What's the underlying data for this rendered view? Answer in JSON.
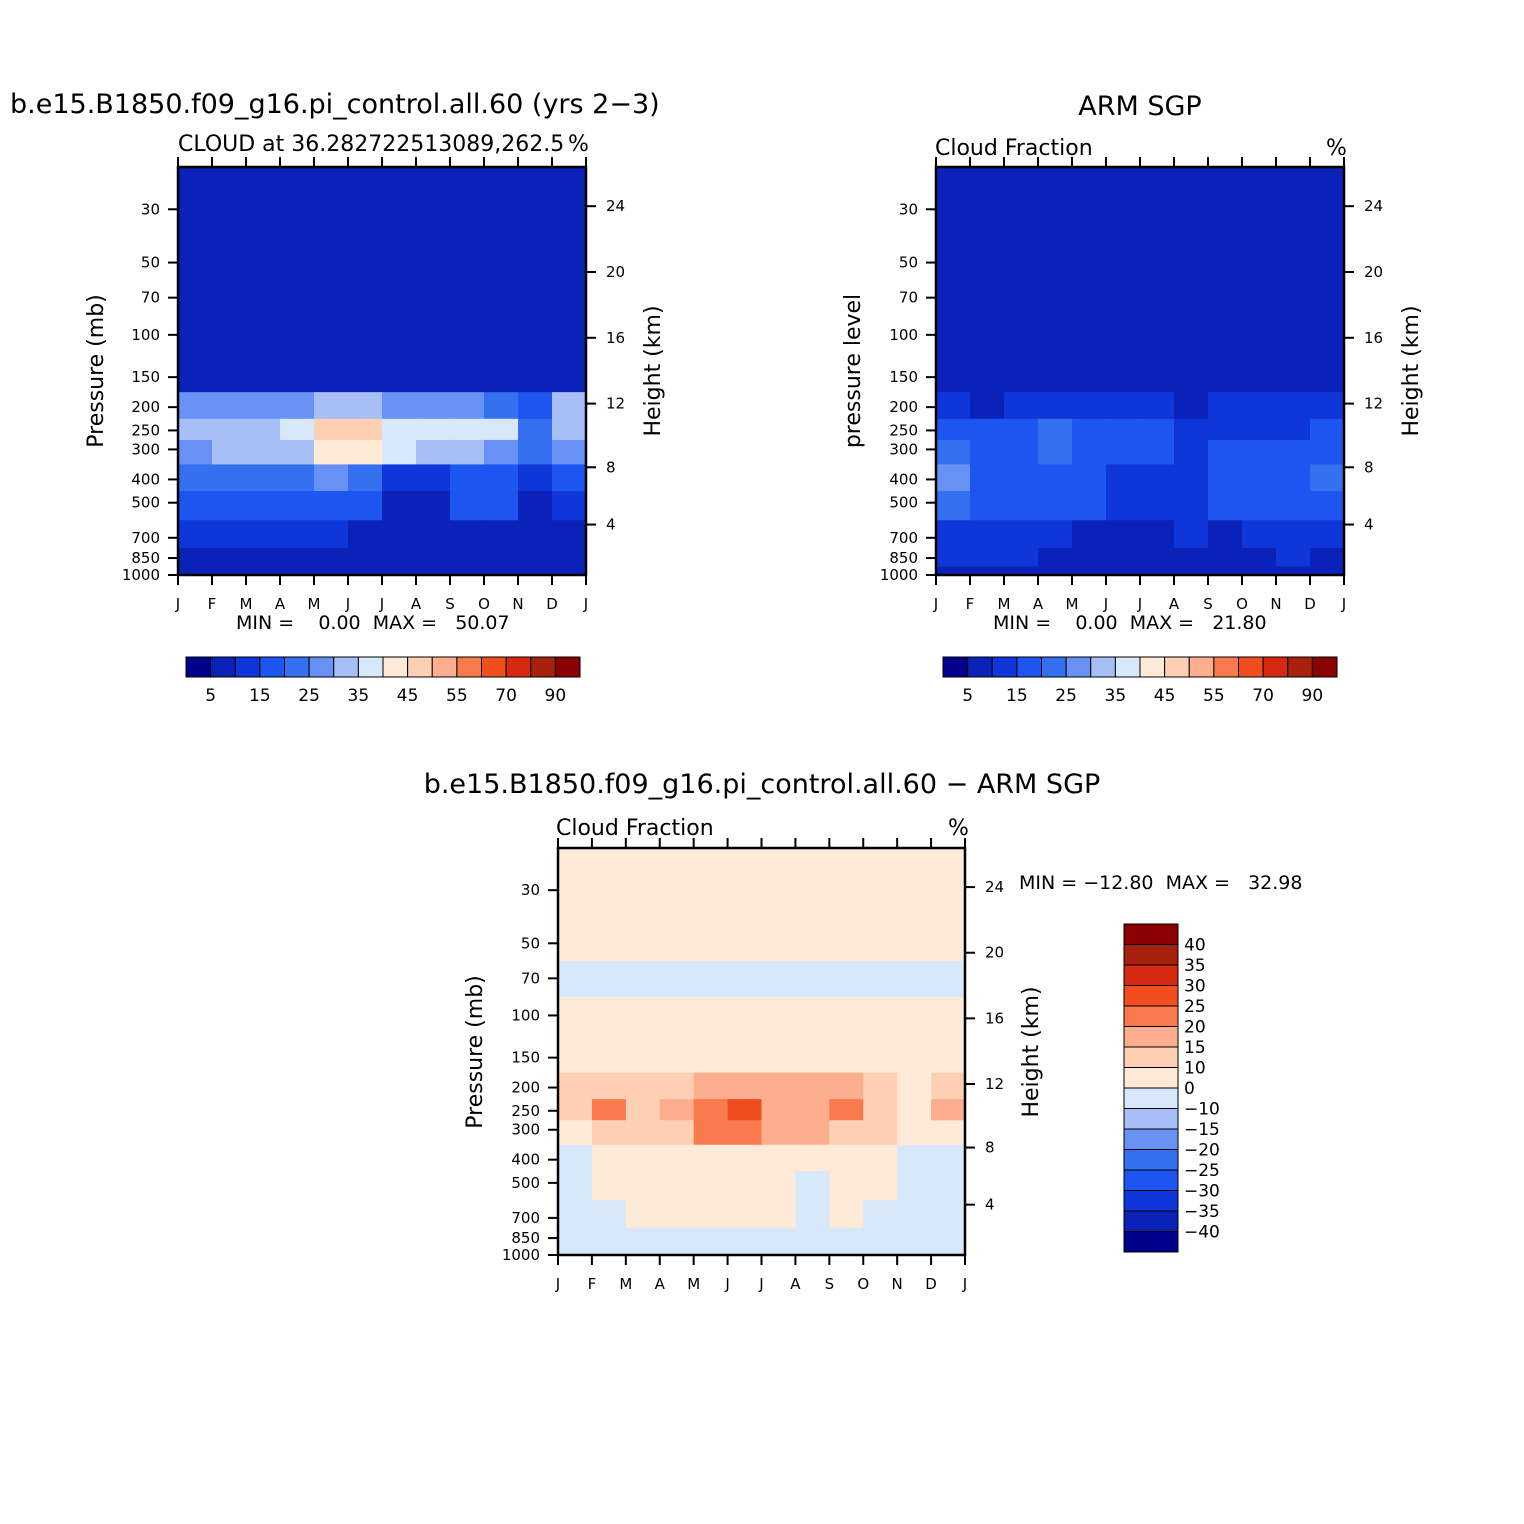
{
  "panels": [
    {
      "title": "b.e15.B1850.f09_g16.pi_control.all.60 (yrs 2−3)",
      "subtitle": "CLOUD at 36.282722513089,262.5",
      "units": "%",
      "ylabel": "Pressure (mb)",
      "ylabel_right": "Height (km)",
      "stats": "MIN =    0.00  MAX =   50.07"
    },
    {
      "title": "ARM SGP",
      "subtitle": "Cloud Fraction",
      "units": "%",
      "ylabel": "pressure level",
      "ylabel_right": "Height (km)",
      "stats": "MIN =    0.00  MAX =   21.80"
    },
    {
      "title": "b.e15.B1850.f09_g16.pi_control.all.60 − ARM SGP",
      "subtitle": "Cloud Fraction",
      "units": "%",
      "ylabel": "Pressure (mb)",
      "ylabel_right": "Height (km)",
      "stats": "MIN = −12.80  MAX =   32.98"
    }
  ],
  "chart_data": [
    {
      "type": "heatmap",
      "title": "b.e15.B1850.f09_g16.pi_control.all.60 (yrs 2−3)",
      "subtitle": "CLOUD at 36.282722513089,262.5",
      "units": "%",
      "x_ticks": [
        "J",
        "F",
        "M",
        "A",
        "M",
        "J",
        "J",
        "A",
        "S",
        "O",
        "N",
        "D",
        "J"
      ],
      "y_ticks": [
        "30",
        "50",
        "70",
        "100",
        "150",
        "200",
        "250",
        "300",
        "400",
        "500",
        "700",
        "850",
        "1000"
      ],
      "y_tick_values": [
        30,
        50,
        70,
        100,
        150,
        200,
        250,
        300,
        400,
        500,
        700,
        850,
        1000
      ],
      "y2_ticks": [
        "24",
        "20",
        "16",
        "12",
        "8",
        "4"
      ],
      "ylim": [
        1000,
        20
      ],
      "log_y": true,
      "min": 0.0,
      "max": 50.07,
      "months": [
        "J",
        "F",
        "M",
        "A",
        "M",
        "J",
        "J",
        "A",
        "S",
        "O",
        "N",
        "D"
      ],
      "levels": [
        30,
        50,
        70,
        100,
        150,
        200,
        250,
        300,
        400,
        500,
        700,
        850,
        1000
      ],
      "values": [
        [
          0,
          0,
          0,
          0,
          0,
          0,
          0,
          0,
          0,
          0,
          0,
          0
        ],
        [
          0,
          0,
          0,
          0,
          0,
          0,
          0,
          0,
          0,
          0,
          0,
          0
        ],
        [
          0,
          0,
          0,
          0,
          0,
          0,
          0,
          0,
          0,
          0,
          0,
          0
        ],
        [
          0,
          0,
          0,
          0,
          0,
          0,
          0,
          0,
          0,
          0,
          0,
          0
        ],
        [
          2,
          2,
          2,
          2,
          2,
          3,
          2,
          2,
          2,
          2,
          2,
          3
        ],
        [
          20,
          20,
          20,
          22,
          25,
          25,
          22,
          20,
          20,
          18,
          12,
          25
        ],
        [
          27,
          28,
          25,
          30,
          40,
          42,
          32,
          30,
          32,
          30,
          15,
          28
        ],
        [
          22,
          27,
          25,
          28,
          36,
          36,
          30,
          28,
          28,
          24,
          15,
          22
        ],
        [
          16,
          16,
          16,
          18,
          20,
          16,
          8,
          8,
          14,
          14,
          8,
          14
        ],
        [
          14,
          14,
          14,
          14,
          14,
          12,
          4,
          4,
          12,
          10,
          4,
          8
        ],
        [
          6,
          6,
          6,
          6,
          6,
          4,
          2,
          2,
          4,
          4,
          2,
          3
        ],
        [
          3,
          2,
          2,
          2,
          3,
          1,
          1,
          1,
          1,
          0,
          1,
          1
        ],
        [
          1,
          1,
          1,
          1,
          1,
          1,
          1,
          1,
          1,
          1,
          1,
          1
        ]
      ]
    },
    {
      "type": "heatmap",
      "title": "ARM SGP",
      "subtitle": "Cloud Fraction",
      "units": "%",
      "x_ticks": [
        "J",
        "F",
        "M",
        "A",
        "M",
        "J",
        "J",
        "A",
        "S",
        "O",
        "N",
        "D",
        "J"
      ],
      "y_ticks": [
        "30",
        "50",
        "70",
        "100",
        "150",
        "200",
        "250",
        "300",
        "400",
        "500",
        "700",
        "850",
        "1000"
      ],
      "y_tick_values": [
        30,
        50,
        70,
        100,
        150,
        200,
        250,
        300,
        400,
        500,
        700,
        850,
        1000
      ],
      "y2_ticks": [
        "24",
        "20",
        "16",
        "12",
        "8",
        "4"
      ],
      "ylim": [
        1000,
        20
      ],
      "log_y": true,
      "min": 0.0,
      "max": 21.8,
      "months": [
        "J",
        "F",
        "M",
        "A",
        "M",
        "J",
        "J",
        "A",
        "S",
        "O",
        "N",
        "D"
      ],
      "levels": [
        30,
        50,
        70,
        100,
        150,
        200,
        250,
        300,
        400,
        500,
        700,
        850,
        1000
      ],
      "values": [
        [
          0,
          0,
          0,
          0,
          0,
          0,
          0,
          0,
          0,
          0,
          0,
          0
        ],
        [
          0,
          0,
          0,
          0,
          0,
          0,
          0,
          0,
          0,
          0,
          0,
          0
        ],
        [
          0,
          0,
          0,
          0,
          0,
          0,
          0,
          0,
          0,
          0,
          0,
          0
        ],
        [
          0,
          0,
          0,
          0,
          0,
          0,
          0,
          0,
          0,
          0,
          0,
          0
        ],
        [
          0,
          0,
          0,
          0,
          0,
          0,
          0,
          0,
          0,
          0,
          0,
          0
        ],
        [
          6,
          3,
          6,
          8,
          8,
          8,
          6,
          4,
          6,
          6,
          6,
          6
        ],
        [
          14,
          12,
          14,
          16,
          14,
          12,
          14,
          8,
          8,
          8,
          8,
          10
        ],
        [
          18,
          14,
          14,
          16,
          14,
          12,
          12,
          8,
          10,
          10,
          10,
          14
        ],
        [
          20,
          14,
          14,
          14,
          12,
          8,
          8,
          8,
          10,
          12,
          12,
          16
        ],
        [
          16,
          12,
          12,
          12,
          10,
          6,
          6,
          8,
          10,
          12,
          12,
          12
        ],
        [
          8,
          6,
          6,
          6,
          4,
          4,
          2,
          6,
          4,
          6,
          6,
          6
        ],
        [
          6,
          8,
          6,
          4,
          4,
          4,
          4,
          4,
          4,
          4,
          8,
          4
        ],
        [
          2,
          2,
          2,
          2,
          2,
          2,
          2,
          2,
          2,
          2,
          2,
          2
        ]
      ]
    },
    {
      "type": "heatmap",
      "title": "b.e15.B1850.f09_g16.pi_control.all.60 − ARM SGP",
      "subtitle": "Cloud Fraction",
      "units": "%",
      "x_ticks": [
        "J",
        "F",
        "M",
        "A",
        "M",
        "J",
        "J",
        "A",
        "S",
        "O",
        "N",
        "D",
        "J"
      ],
      "y_ticks": [
        "30",
        "50",
        "70",
        "100",
        "150",
        "200",
        "250",
        "300",
        "400",
        "500",
        "700",
        "850",
        "1000"
      ],
      "y_tick_values": [
        30,
        50,
        70,
        100,
        150,
        200,
        250,
        300,
        400,
        500,
        700,
        850,
        1000
      ],
      "y2_ticks": [
        "24",
        "20",
        "16",
        "12",
        "8",
        "4"
      ],
      "ylim": [
        1000,
        20
      ],
      "log_y": true,
      "min": -12.8,
      "max": 32.98,
      "months": [
        "J",
        "F",
        "M",
        "A",
        "M",
        "J",
        "J",
        "A",
        "S",
        "O",
        "N",
        "D"
      ],
      "levels": [
        30,
        50,
        70,
        100,
        150,
        200,
        250,
        300,
        400,
        500,
        700,
        850,
        1000
      ],
      "values": [
        [
          0.2,
          0.2,
          0.2,
          0.2,
          0.2,
          0.2,
          0.2,
          0.2,
          0.2,
          0.2,
          0.2,
          0.2
        ],
        [
          0.2,
          0.2,
          0.2,
          0.2,
          0.2,
          0.2,
          0.2,
          0.2,
          0.2,
          0.2,
          0.2,
          0.2
        ],
        [
          -0.5,
          -0.5,
          -0.5,
          -0.5,
          -0.5,
          -0.5,
          -0.5,
          -0.5,
          -0.5,
          -0.5,
          -0.5,
          -0.5
        ],
        [
          0.5,
          0.5,
          0.5,
          0.5,
          0.5,
          0.2,
          0.5,
          0.2,
          0.5,
          0.5,
          0.5,
          0.5
        ],
        [
          3,
          3,
          3,
          3,
          3,
          3,
          3,
          3,
          3,
          3,
          3,
          3
        ],
        [
          10,
          14,
          14,
          14,
          16,
          18,
          16,
          15,
          16,
          10,
          5,
          12
        ],
        [
          13,
          21,
          14,
          16,
          24,
          28,
          18,
          19,
          22,
          14,
          6,
          16
        ],
        [
          4,
          12,
          10,
          12,
          20,
          22,
          16,
          16,
          14,
          12,
          4,
          6
        ],
        [
          -2,
          3,
          3,
          4,
          6,
          6,
          1,
          1,
          4,
          2,
          -1,
          -1
        ],
        [
          -2,
          2,
          2,
          2,
          3,
          4,
          1,
          -2,
          2,
          1,
          -4,
          -2
        ],
        [
          -1,
          -1,
          0,
          0,
          1,
          1,
          0,
          -1,
          1,
          -1,
          -2,
          -2
        ],
        [
          -2,
          -2,
          -3,
          -3,
          -3,
          -1,
          -1,
          -1,
          -1,
          -1,
          -3,
          -3
        ],
        [
          -1,
          -1,
          -1,
          -1,
          -1,
          -1,
          -1,
          -1,
          -1,
          -1,
          -1,
          -1
        ]
      ]
    }
  ],
  "colorbar_seq": {
    "colors": [
      "#00008b",
      "#0b22b8",
      "#0e36d8",
      "#1d55f0",
      "#3470f0",
      "#6891f5",
      "#a6bff7",
      "#d7e8fb",
      "#feead7",
      "#fdd0b4",
      "#fcae8f",
      "#f87a4d",
      "#f04e1f",
      "#d62a10",
      "#a8210c",
      "#8b0000"
    ],
    "labels": [
      "5",
      "15",
      "25",
      "35",
      "45",
      "55",
      "70",
      "90"
    ],
    "thresholds": [
      0,
      5,
      10,
      15,
      20,
      25,
      30,
      35,
      40,
      45,
      50,
      55,
      60,
      70,
      80,
      90
    ]
  },
  "colorbar_div": {
    "colors": [
      "#00008b",
      "#0b22b8",
      "#0e36d8",
      "#1d55f0",
      "#3470f0",
      "#6891f5",
      "#a6bff7",
      "#d7e8fb",
      "#feead7",
      "#fdd0b4",
      "#fcae8f",
      "#f87a4d",
      "#f04e1f",
      "#d62a10",
      "#a8210c",
      "#8b0000"
    ],
    "labels": [
      "40",
      "35",
      "30",
      "25",
      "20",
      "15",
      "10",
      "0",
      "−10",
      "−15",
      "−20",
      "−25",
      "−30",
      "−35",
      "−40"
    ],
    "thresholds": [
      -40,
      -35,
      -30,
      -25,
      -20,
      -15,
      -10,
      0,
      10,
      15,
      20,
      25,
      30,
      35,
      40
    ]
  }
}
